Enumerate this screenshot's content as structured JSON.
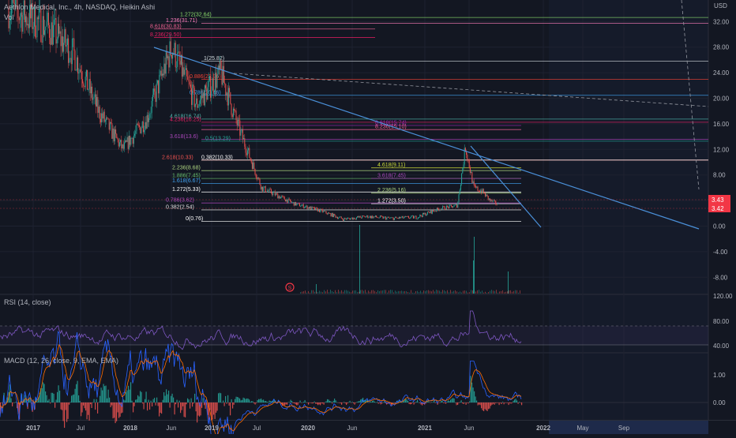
{
  "header": {
    "title": "Aethlon Medical, Inc., 4h, NASDAQ, Heikin Ashi",
    "vol_label": "Vol",
    "currency": "USD"
  },
  "rsi": {
    "label": "RSI (14, close)",
    "levels": [
      80,
      60,
      40
    ],
    "upper": 70,
    "lower": 30
  },
  "macd": {
    "label": "MACD (12, 26, close, 9, EMA, EMA)",
    "ticks": [
      "1.00",
      "0.00"
    ]
  },
  "colors": {
    "background": "#131722",
    "up": "#26a69a",
    "down": "#ef5350",
    "trendline": "#4a90d9",
    "rsi_line": "#7e57c2",
    "macd_line": "#2962ff",
    "signal_line": "#ff6d00",
    "current_price_badge": "#f23645"
  },
  "price_badges": [
    "3.43",
    "3.42"
  ],
  "x_labels": [
    {
      "label": "2017",
      "bold": true
    },
    {
      "label": "Jul",
      "bold": false
    },
    {
      "label": "2018",
      "bold": true
    },
    {
      "label": "Jun",
      "bold": false
    },
    {
      "label": "2019",
      "bold": true
    },
    {
      "label": "Jul",
      "bold": false
    },
    {
      "label": "2020",
      "bold": true
    },
    {
      "label": "Jun",
      "bold": false
    },
    {
      "label": "2021",
      "bold": true
    },
    {
      "label": "Jun",
      "bold": false
    },
    {
      "label": "2022",
      "bold": true
    },
    {
      "label": "May",
      "bold": false
    },
    {
      "label": "Sep",
      "bold": false
    }
  ],
  "chart_data": {
    "type": "line",
    "title": "Aethlon Medical, Inc., 4h, NASDAQ, Heikin Ashi",
    "y_axis_ticks": [
      "36.00",
      "32.00",
      "28.00",
      "24.00",
      "20.00",
      "16.00",
      "12.00",
      "8.00",
      "4.00",
      "0.00",
      "-4.00",
      "-8.00"
    ],
    "ylim": [
      -12,
      36
    ],
    "series": [
      {
        "name": "price (approx.)",
        "x": [
          "2016-10",
          "2017-03",
          "2017-06",
          "2017-09",
          "2017-12",
          "2018-03",
          "2018-06",
          "2018-09",
          "2018-12",
          "2019-02",
          "2019-05",
          "2019-09",
          "2019-12",
          "2020-03",
          "2020-06",
          "2020-09",
          "2020-12",
          "2021-03",
          "2021-05",
          "2021-06",
          "2021-07",
          "2021-08",
          "2021-09",
          "2021-10"
        ],
        "values": [
          34,
          31,
          27,
          18,
          12,
          17,
          28,
          19,
          24,
          16,
          6,
          3.5,
          2.5,
          1.1,
          1.5,
          1.2,
          1.4,
          2.8,
          3.2,
          12.5,
          6,
          5.5,
          4,
          3.4
        ]
      }
    ],
    "fib_levels": [
      {
        "label": "1.272(32.64)",
        "value": 32.64
      },
      {
        "label": "1.236(31.71)",
        "value": 31.71
      },
      {
        "label": "8.618(30.83)",
        "value": 30.83
      },
      {
        "label": "8.236(29.50)",
        "value": 29.5
      },
      {
        "label": "1(25.82)",
        "value": 25.82
      },
      {
        "label": "0.886(22.96)",
        "value": 22.96
      },
      {
        "label": "0.786(20.46)",
        "value": 20.46
      },
      {
        "label": "4.618(16.74)",
        "value": 16.74
      },
      {
        "label": "4.236(16.25)",
        "value": 16.25
      },
      {
        "label": "8.618(15.74)",
        "value": 15.74
      },
      {
        "label": "8.236(15.10)",
        "value": 15.1
      },
      {
        "label": "3.618(13.6)",
        "value": 13.6
      },
      {
        "label": "0.5(13.29)",
        "value": 13.29
      },
      {
        "label": "2.618(10.33)",
        "value": 10.33
      },
      {
        "label": "0.382(10.33)",
        "value": 10.33
      },
      {
        "label": "4.618(9.11)",
        "value": 9.11
      },
      {
        "label": "2.236(8.68)",
        "value": 8.68
      },
      {
        "label": "1.886(7.45)",
        "value": 7.45
      },
      {
        "label": "3.618(7.45)",
        "value": 7.45
      },
      {
        "label": "1.618(6.67)",
        "value": 6.67
      },
      {
        "label": "1.272(5.33)",
        "value": 5.33
      },
      {
        "label": "2.236(5.16)",
        "value": 5.16
      },
      {
        "label": "0.786(3.62)",
        "value": 3.62
      },
      {
        "label": "1.272(3.50)",
        "value": 3.5
      },
      {
        "label": "0.382(2.54)",
        "value": 2.54
      },
      {
        "label": "0(0.76)",
        "value": 0.76
      }
    ],
    "annotations": [
      "S"
    ],
    "grid": true,
    "legend": "none"
  }
}
